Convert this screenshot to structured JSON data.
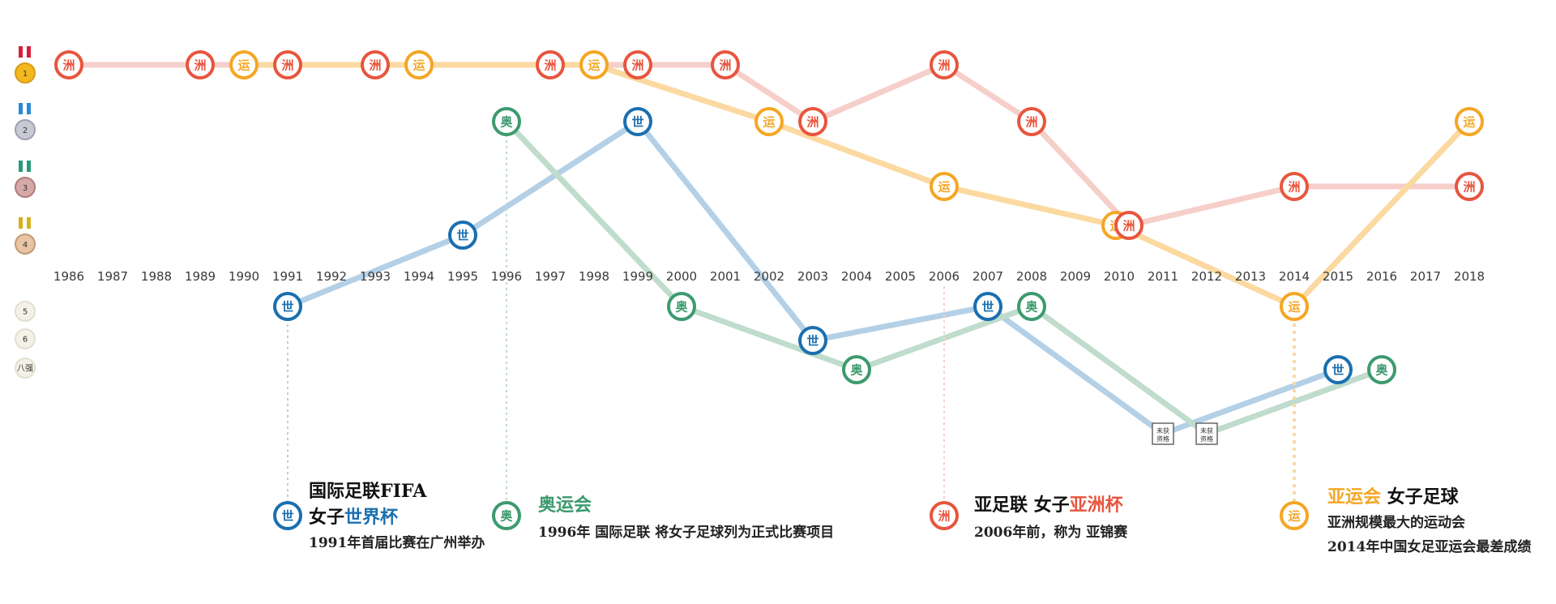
{
  "chart_data": {
    "type": "line",
    "title": "",
    "years": [
      "1986",
      "1987",
      "1988",
      "1989",
      "1990",
      "1991",
      "1992",
      "1993",
      "1994",
      "1995",
      "1996",
      "1997",
      "1998",
      "1999",
      "2000",
      "2001",
      "2002",
      "2003",
      "2004",
      "2005",
      "2006",
      "2007",
      "2008",
      "2009",
      "2010",
      "2011",
      "2012",
      "2013",
      "2014",
      "2015",
      "2016",
      "2017",
      "2018"
    ],
    "rank_levels": [
      "1",
      "2",
      "3",
      "4",
      "5",
      "6",
      "八强"
    ],
    "not_qualified_label": "未获资格",
    "series": [
      {
        "key": "asian_cup",
        "name": "亚洲杯",
        "glyph": "洲",
        "color": "#e8553e",
        "line_color": "#f6cfca",
        "points": [
          {
            "year": "1986",
            "rank": 1
          },
          {
            "year": "1989",
            "rank": 1
          },
          {
            "year": "1991",
            "rank": 1
          },
          {
            "year": "1993",
            "rank": 1
          },
          {
            "year": "1997",
            "rank": 1
          },
          {
            "year": "1999",
            "rank": 1
          },
          {
            "year": "2001",
            "rank": 1
          },
          {
            "year": "2003",
            "rank": 2
          },
          {
            "year": "2006",
            "rank": 1
          },
          {
            "year": "2008",
            "rank": 2
          },
          {
            "year": "2010",
            "rank": 3.8
          },
          {
            "year": "2014",
            "rank": 3
          },
          {
            "year": "2018",
            "rank": 3
          }
        ]
      },
      {
        "key": "asian_games",
        "name": "亚运会",
        "glyph": "运",
        "color": "#f5a623",
        "line_color": "#fbd9a0",
        "points": [
          {
            "year": "1990",
            "rank": 1
          },
          {
            "year": "1994",
            "rank": 1
          },
          {
            "year": "1998",
            "rank": 1
          },
          {
            "year": "2002",
            "rank": 2
          },
          {
            "year": "2006",
            "rank": 3
          },
          {
            "year": "2010",
            "rank": 3.8
          },
          {
            "year": "2014",
            "rank": 5
          },
          {
            "year": "2018",
            "rank": 2
          }
        ]
      },
      {
        "key": "world_cup",
        "name": "世界杯",
        "glyph": "世",
        "color": "#1a6fb0",
        "line_color": "#b4d0e6",
        "points": [
          {
            "year": "1991",
            "rank": 5
          },
          {
            "year": "1995",
            "rank": 4
          },
          {
            "year": "1999",
            "rank": 2
          },
          {
            "year": "2003",
            "rank": 6
          },
          {
            "year": "2007",
            "rank": 5
          },
          {
            "year": "2011",
            "rank": "nq"
          },
          {
            "year": "2015",
            "rank": 7
          }
        ]
      },
      {
        "key": "olympics",
        "name": "奥运会",
        "glyph": "奥",
        "color": "#3d9a6e",
        "line_color": "#bfdccc",
        "points": [
          {
            "year": "1996",
            "rank": 2
          },
          {
            "year": "2000",
            "rank": 5
          },
          {
            "year": "2004",
            "rank": 7
          },
          {
            "year": "2008",
            "rank": 5
          },
          {
            "year": "2012",
            "rank": "nq"
          },
          {
            "year": "2016",
            "rank": 7
          }
        ]
      }
    ],
    "legend": {
      "world_cup": {
        "glyph": "世",
        "title1": "国际足联FIFA",
        "title2_prefix": "女子",
        "title2_highlight": "世界杯",
        "desc1": "1991年首届比赛在广州举办"
      },
      "olympics": {
        "glyph": "奥",
        "title_highlight": "奥运会",
        "desc1": "1996年 国际足联 将女子足球列为正式比赛项目"
      },
      "asian_cup": {
        "glyph": "洲",
        "title_prefix": "亚足联 女子",
        "title_highlight": "亚洲杯",
        "desc1": "2006年前，称为 亚锦赛"
      },
      "asian_games": {
        "glyph": "运",
        "title_highlight": "亚运会",
        "title_suffix": " 女子足球",
        "desc1": "亚洲规模最大的运动会",
        "desc2": "2014年中国女足亚运会最差成绩"
      }
    }
  }
}
